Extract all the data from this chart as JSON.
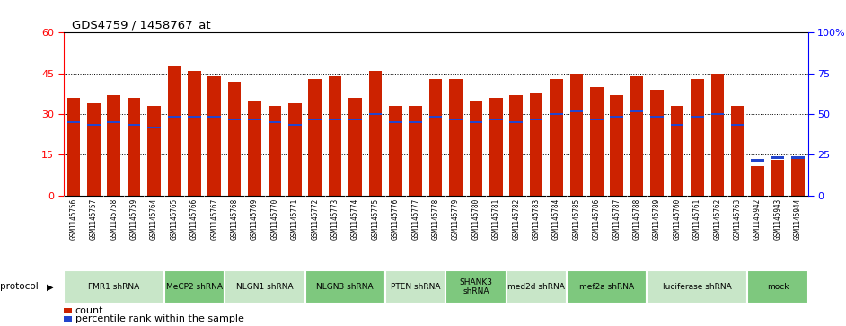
{
  "title": "GDS4759 / 1458767_at",
  "samples": [
    "GSM1145756",
    "GSM1145757",
    "GSM1145758",
    "GSM1145759",
    "GSM1145764",
    "GSM1145765",
    "GSM1145766",
    "GSM1145767",
    "GSM1145768",
    "GSM1145769",
    "GSM1145770",
    "GSM1145771",
    "GSM1145772",
    "GSM1145773",
    "GSM1145774",
    "GSM1145775",
    "GSM1145776",
    "GSM1145777",
    "GSM1145778",
    "GSM1145779",
    "GSM1145780",
    "GSM1145781",
    "GSM1145782",
    "GSM1145783",
    "GSM1145784",
    "GSM1145785",
    "GSM1145786",
    "GSM1145787",
    "GSM1145788",
    "GSM1145789",
    "GSM1145760",
    "GSM1145761",
    "GSM1145762",
    "GSM1145763",
    "GSM1145942",
    "GSM1145943",
    "GSM1145944"
  ],
  "counts": [
    36,
    34,
    37,
    36,
    33,
    48,
    46,
    44,
    42,
    35,
    33,
    34,
    43,
    44,
    36,
    46,
    33,
    33,
    43,
    43,
    35,
    36,
    37,
    38,
    43,
    45,
    40,
    37,
    44,
    39,
    33,
    43,
    45,
    33,
    11,
    13,
    14
  ],
  "percentile_counts": [
    27,
    26,
    27,
    26,
    25,
    29,
    29,
    29,
    28,
    28,
    27,
    26,
    28,
    28,
    28,
    30,
    27,
    27,
    29,
    28,
    27,
    28,
    27,
    28,
    30,
    31,
    28,
    29,
    31,
    29,
    26,
    29,
    30,
    26,
    13,
    14,
    14
  ],
  "protocols": [
    {
      "label": "FMR1 shRNA",
      "start": 0,
      "end": 5,
      "color": "#c8e6c8"
    },
    {
      "label": "MeCP2 shRNA",
      "start": 5,
      "end": 8,
      "color": "#7ec87e"
    },
    {
      "label": "NLGN1 shRNA",
      "start": 8,
      "end": 12,
      "color": "#c8e6c8"
    },
    {
      "label": "NLGN3 shRNA",
      "start": 12,
      "end": 16,
      "color": "#7ec87e"
    },
    {
      "label": "PTEN shRNA",
      "start": 16,
      "end": 19,
      "color": "#c8e6c8"
    },
    {
      "label": "SHANK3\nshRNA",
      "start": 19,
      "end": 22,
      "color": "#7ec87e"
    },
    {
      "label": "med2d shRNA",
      "start": 22,
      "end": 25,
      "color": "#c8e6c8"
    },
    {
      "label": "mef2a shRNA",
      "start": 25,
      "end": 29,
      "color": "#7ec87e"
    },
    {
      "label": "luciferase shRNA",
      "start": 29,
      "end": 34,
      "color": "#c8e6c8"
    },
    {
      "label": "mock",
      "start": 34,
      "end": 37,
      "color": "#7ec87e"
    }
  ],
  "bar_color": "#cc2200",
  "percentile_color": "#2244cc",
  "xtick_bg": "#d8d8d8",
  "ylim_left": [
    0,
    60
  ],
  "ylim_right": [
    0,
    100
  ],
  "yticks_left": [
    0,
    15,
    30,
    45,
    60
  ],
  "ytick_labels_left": [
    "0",
    "15",
    "30",
    "45",
    "60"
  ],
  "yticks_right": [
    0,
    25,
    50,
    75,
    100
  ],
  "ytick_labels_right": [
    "0",
    "25",
    "50",
    "75",
    "100%"
  ],
  "bar_width": 0.65
}
